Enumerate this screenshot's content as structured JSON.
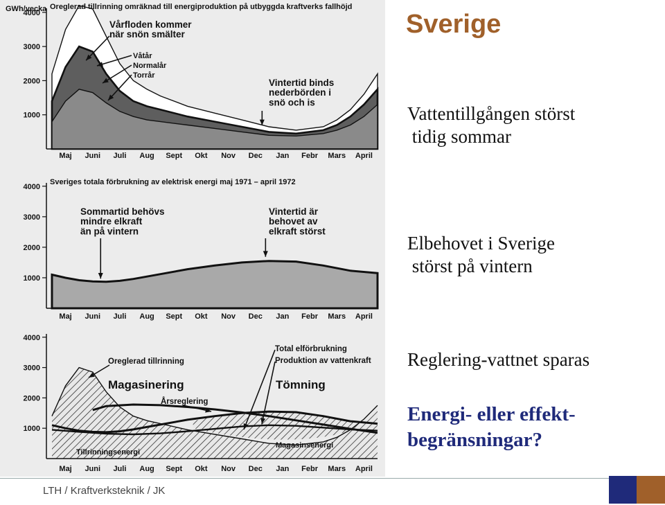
{
  "slide": {
    "title": "Sverige",
    "bullets": [
      "Vattentillgången störst\n tidig sommar",
      "Elbehovet i Sverige\n störst på vintern",
      "Reglering-vattnet sparas"
    ],
    "highlight": "Energi- eller effekt-\nbegränsningar?",
    "footer": "LTH / Kraftverksteknik / JK"
  },
  "colors": {
    "title": "#a0602a",
    "highlight": "#1f2a7a",
    "square_blue": "#1f2a7a",
    "square_brown": "#a0602a",
    "fill_dark": "#5e5e5e",
    "fill_light": "#cfcfcf"
  },
  "chart_data": [
    {
      "type": "area",
      "title": "Oreglerad tillrinning omräknad till energiproduktion på utbyggda kraftverks fallhöjd",
      "ylabel": "GWh/vecka",
      "ylim": [
        0,
        4200
      ],
      "yticks": [
        1000,
        2000,
        3000,
        4000
      ],
      "categories": [
        "Maj",
        "Juni",
        "Juli",
        "Aug",
        "Sept",
        "Okt",
        "Nov",
        "Dec",
        "Jan",
        "Febr",
        "Mars",
        "April"
      ],
      "series": [
        {
          "name": "Våtår",
          "x": [
            0,
            0.5,
            1,
            1.5,
            2,
            2.5,
            3,
            3.5,
            4,
            5,
            6,
            7,
            8,
            9,
            10,
            10.5,
            11,
            11.5,
            12
          ],
          "values": [
            2200,
            3500,
            4200,
            4100,
            3300,
            2500,
            2000,
            1750,
            1550,
            1250,
            1050,
            850,
            650,
            550,
            650,
            850,
            1150,
            1600,
            2200
          ]
        },
        {
          "name": "Normalår",
          "x": [
            0,
            0.5,
            1,
            1.5,
            2,
            2.5,
            3,
            3.5,
            4,
            5,
            6,
            7,
            8,
            9,
            10,
            10.5,
            11,
            11.5,
            12
          ],
          "values": [
            1400,
            2400,
            3000,
            2850,
            2200,
            1700,
            1400,
            1250,
            1150,
            950,
            800,
            650,
            500,
            450,
            550,
            700,
            950,
            1300,
            1750
          ]
        },
        {
          "name": "Torrår",
          "x": [
            0,
            0.5,
            1,
            1.5,
            2,
            2.5,
            3,
            3.5,
            4,
            5,
            6,
            7,
            8,
            9,
            10,
            10.5,
            11,
            11.5,
            12
          ],
          "values": [
            800,
            1400,
            1750,
            1650,
            1350,
            1100,
            950,
            850,
            800,
            700,
            600,
            500,
            400,
            380,
            450,
            550,
            700,
            950,
            1300
          ]
        }
      ],
      "annotations": [
        {
          "text": "Vårfloden kommer\nnär snön smälter",
          "x": 1.0,
          "y": 3000
        },
        {
          "text": "Vintertid binds\nnederbörden i\nsnö och is",
          "x": 8.0,
          "y": 650
        }
      ]
    },
    {
      "type": "area",
      "title": "Sveriges totala förbrukning av elektrisk energi maj 1971 – april 1972",
      "ylim": [
        0,
        4200
      ],
      "yticks": [
        1000,
        2000,
        3000,
        4000
      ],
      "categories": [
        "Maj",
        "Juni",
        "Juli",
        "Aug",
        "Sept",
        "Okt",
        "Nov",
        "Dec",
        "Jan",
        "Febr",
        "Mars",
        "April"
      ],
      "series": [
        {
          "name": "Total förbrukning",
          "x": [
            0,
            0.5,
            1,
            1.5,
            2,
            2.5,
            3,
            4,
            5,
            6,
            7,
            8,
            9,
            10,
            11,
            12
          ],
          "values": [
            1100,
            1000,
            920,
            880,
            870,
            900,
            960,
            1120,
            1280,
            1400,
            1500,
            1550,
            1530,
            1400,
            1230,
            1150
          ]
        }
      ],
      "annotations": [
        {
          "text": "Sommartid behövs\nmindre elkraft\nän på vintern",
          "x": 2.1,
          "y": 880
        },
        {
          "text": "Vintertid är\nbehovet av\nelkraft störst",
          "x": 8.0,
          "y": 1550
        }
      ]
    },
    {
      "type": "line",
      "ylim": [
        0,
        4200
      ],
      "yticks": [
        1000,
        2000,
        3000,
        4000
      ],
      "categories": [
        "Maj",
        "Juni",
        "Juli",
        "Aug",
        "Sept",
        "Okt",
        "Nov",
        "Dec",
        "Jan",
        "Febr",
        "Mars",
        "April"
      ],
      "series": [
        {
          "name": "Oreglerad tillrinning",
          "x": [
            0,
            0.5,
            1,
            1.5,
            2,
            2.5,
            3,
            3.5,
            4,
            5,
            6,
            7,
            8,
            9,
            10,
            10.5,
            11,
            11.5,
            12
          ],
          "values": [
            1400,
            2400,
            3000,
            2850,
            2200,
            1700,
            1400,
            1250,
            1150,
            950,
            800,
            650,
            500,
            450,
            550,
            700,
            950,
            1300,
            1750
          ]
        },
        {
          "name": "Total elförbrukning",
          "x": [
            0,
            0.5,
            1,
            1.5,
            2,
            2.5,
            3,
            4,
            5,
            6,
            7,
            8,
            9,
            10,
            11,
            12
          ],
          "values": [
            1100,
            1000,
            920,
            880,
            870,
            900,
            960,
            1120,
            1280,
            1400,
            1500,
            1550,
            1530,
            1400,
            1230,
            1150
          ]
        },
        {
          "name": "Produktion av vattenkraft",
          "x": [
            0,
            1,
            2,
            3,
            4,
            5,
            6,
            7,
            8,
            9,
            10,
            11,
            12
          ],
          "values": [
            950,
            880,
            820,
            800,
            830,
            900,
            980,
            1060,
            1100,
            1080,
            1020,
            960,
            920
          ]
        },
        {
          "name": "Årsreglering",
          "x": [
            1.5,
            2,
            3,
            4,
            5,
            6,
            7,
            8,
            9,
            10,
            11,
            12
          ],
          "values": [
            1600,
            1730,
            1780,
            1760,
            1700,
            1620,
            1520,
            1400,
            1260,
            1120,
            980,
            850
          ]
        }
      ],
      "annotations": [
        {
          "text": "Magasinering",
          "x": 2.3,
          "y": 2400
        },
        {
          "text": "Tömning",
          "x": 8.2,
          "y": 2400
        },
        {
          "text": "Tillrinningsenergi",
          "x": 1.0,
          "y": 300
        },
        {
          "text": "Magasinsenergi",
          "x": 8.0,
          "y": 700
        }
      ]
    }
  ]
}
